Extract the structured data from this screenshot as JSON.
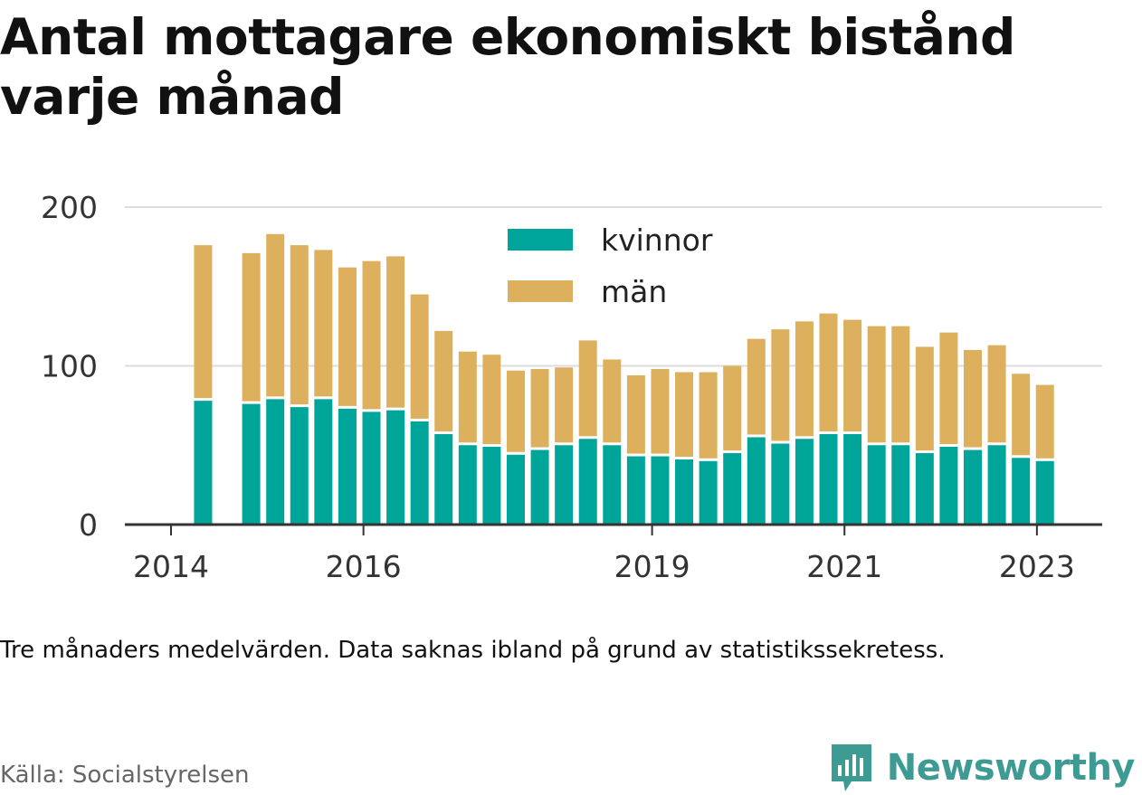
{
  "title": "Antal mottagare ekonomiskt bistånd varje månad",
  "note": "Tre månaders medelvärden. Data saknas ibland på grund av statistikssekretess.",
  "source": "Källa: Socialstyrelsen",
  "brand": {
    "name": "Newsworthy",
    "icon": "newsworthy-logo-icon",
    "color": "#3d9b94"
  },
  "chart_data": {
    "type": "bar",
    "stacked": true,
    "ylim": [
      0,
      200
    ],
    "yticks": [
      0,
      100,
      200
    ],
    "xticks": [
      "2014",
      "2016",
      "2019",
      "2021",
      "2023"
    ],
    "grid": true,
    "legend_position": "top-center",
    "colors": {
      "kvinnor": "#00a59a",
      "män": "#dcb05d"
    },
    "periods": [
      "2014-05",
      "2014-08",
      "2014-11",
      "2015-02",
      "2015-05",
      "2015-08",
      "2015-11",
      "2016-02",
      "2016-05",
      "2016-08",
      "2016-11",
      "2017-02",
      "2017-05",
      "2017-08",
      "2017-11",
      "2018-02",
      "2018-05",
      "2018-08",
      "2018-11",
      "2019-02",
      "2019-05",
      "2019-08",
      "2019-11",
      "2020-02",
      "2020-05",
      "2020-08",
      "2020-11",
      "2021-02",
      "2021-05",
      "2021-08",
      "2021-11",
      "2022-02",
      "2022-05",
      "2022-08",
      "2022-11",
      "2023-02",
      "2023-05"
    ],
    "series": [
      {
        "name": "kvinnor",
        "values": [
          78,
          null,
          76,
          79,
          74,
          79,
          73,
          71,
          72,
          65,
          57,
          50,
          49,
          44,
          47,
          50,
          54,
          50,
          43,
          43,
          41,
          40,
          45,
          55,
          51,
          54,
          57,
          57,
          50,
          50,
          45,
          49,
          47,
          50,
          42,
          40,
          0
        ]
      },
      {
        "name": "män",
        "values": [
          98,
          null,
          95,
          104,
          102,
          94,
          89,
          95,
          97,
          80,
          65,
          59,
          58,
          53,
          51,
          49,
          62,
          54,
          51,
          55,
          55,
          56,
          55,
          62,
          72,
          74,
          76,
          72,
          75,
          75,
          67,
          72,
          63,
          63,
          53,
          48,
          0
        ]
      }
    ]
  }
}
